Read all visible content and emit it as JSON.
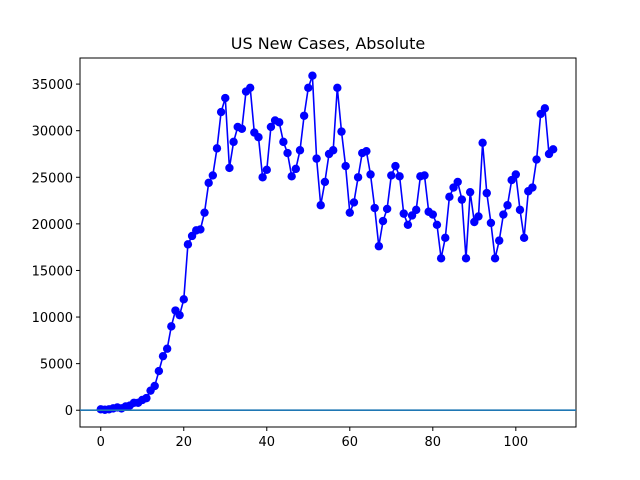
{
  "chart_data": {
    "type": "line",
    "title": "US New Cases, Absolute",
    "xlabel": "",
    "ylabel": "",
    "xlim": [
      -5,
      114.5
    ],
    "ylim": [
      -1800,
      37800
    ],
    "xticks": [
      0,
      20,
      40,
      60,
      80,
      100
    ],
    "yticks": [
      0,
      5000,
      10000,
      15000,
      20000,
      25000,
      30000,
      35000
    ],
    "grid": false,
    "legend": "none",
    "baseline": {
      "y": 0,
      "color": "#1f77b4"
    },
    "series": [
      {
        "color": "#0000ff",
        "marker": "circle",
        "x": [
          0,
          1,
          2,
          3,
          4,
          5,
          6,
          7,
          8,
          9,
          10,
          11,
          12,
          13,
          14,
          15,
          16,
          17,
          18,
          19,
          20,
          21,
          22,
          23,
          24,
          25,
          26,
          27,
          28,
          29,
          30,
          31,
          32,
          33,
          34,
          35,
          36,
          37,
          38,
          39,
          40,
          41,
          42,
          43,
          44,
          45,
          46,
          47,
          48,
          49,
          50,
          51,
          52,
          53,
          54,
          55,
          56,
          57,
          58,
          59,
          60,
          61,
          62,
          63,
          64,
          65,
          66,
          67,
          68,
          69,
          70,
          71,
          72,
          73,
          74,
          75,
          76,
          77,
          78,
          79,
          80,
          81,
          82,
          83,
          84,
          85,
          86,
          87,
          88,
          89,
          90,
          91,
          92,
          93,
          94,
          95,
          96,
          97,
          98,
          99,
          100,
          101,
          102,
          103,
          104,
          105,
          106,
          107,
          108,
          109
        ],
        "y": [
          100,
          50,
          100,
          200,
          300,
          200,
          400,
          500,
          800,
          800,
          1100,
          1300,
          2100,
          2600,
          4200,
          5800,
          6600,
          9000,
          10700,
          10200,
          11900,
          17800,
          18700,
          19300,
          19400,
          21200,
          24400,
          25200,
          28100,
          32000,
          33500,
          26000,
          28800,
          30400,
          30200,
          34200,
          34600,
          29800,
          29300,
          25000,
          25800,
          30400,
          31100,
          30900,
          28800,
          27600,
          25100,
          25900,
          27900,
          31600,
          34600,
          35900,
          27000,
          22000,
          24500,
          27500,
          27900,
          34600,
          29900,
          26200,
          21200,
          22300,
          25000,
          27600,
          27800,
          25300,
          21700,
          17600,
          20300,
          21600,
          25200,
          26200,
          25100,
          21100,
          19900,
          20900,
          21500,
          25100,
          25200,
          21300,
          21000,
          19900,
          16300,
          18500,
          22900,
          23900,
          24500,
          22600,
          16300,
          23400,
          20200,
          20800,
          28700,
          23300,
          20100,
          16300,
          18200,
          21000,
          22000,
          24700,
          25300,
          21500,
          18500,
          23500,
          23900,
          26900,
          31800,
          32400,
          27500,
          28000
        ]
      }
    ]
  }
}
